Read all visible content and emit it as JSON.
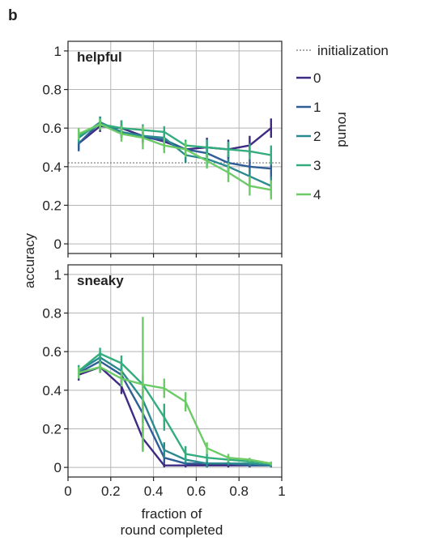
{
  "panel_label": "b",
  "colors": {
    "round_0": "#3f2a83",
    "round_1": "#2f5e96",
    "round_2": "#2a8a8f",
    "round_3": "#33ad7d",
    "round_4": "#6ccb67",
    "initialization": "#777777",
    "grid": "#b5b5b5"
  },
  "legend": {
    "initialization": "initialization",
    "title": "round",
    "entries": [
      "0",
      "1",
      "2",
      "3",
      "4"
    ]
  },
  "axes": {
    "ylabel": "accuracy",
    "xlabel_line1": "fraction of",
    "xlabel_line2": "round completed"
  },
  "chart_data": [
    {
      "type": "line",
      "panel": "helpful",
      "title": "helpful",
      "xlim": [
        0,
        1
      ],
      "ylim": [
        -0.05,
        1.05
      ],
      "xticks": [
        0,
        0.2,
        0.4,
        0.6,
        0.8,
        1
      ],
      "xtick_labels": [
        "0",
        "0.2",
        "0.4",
        "0.6",
        "0.8",
        "1"
      ],
      "yticks": [
        0,
        0.2,
        0.4,
        0.6,
        0.8,
        1
      ],
      "ytick_labels": [
        "0",
        "0.2",
        "0.4",
        "0.6",
        "0.8",
        "1"
      ],
      "grid": true,
      "initialization": 0.42,
      "x": [
        0.05,
        0.15,
        0.25,
        0.35,
        0.45,
        0.55,
        0.65,
        0.75,
        0.85,
        0.95
      ],
      "series": [
        {
          "name": "0",
          "values": [
            0.52,
            0.61,
            0.6,
            0.56,
            0.53,
            0.49,
            0.5,
            0.49,
            0.51,
            0.6
          ],
          "err": [
            0.03,
            0.03,
            0.04,
            0.03,
            0.04,
            0.04,
            0.05,
            0.05,
            0.05,
            0.05
          ]
        },
        {
          "name": "1",
          "values": [
            0.52,
            0.63,
            0.58,
            0.55,
            0.54,
            0.49,
            0.47,
            0.42,
            0.4,
            0.39
          ],
          "err": [
            0.04,
            0.03,
            0.03,
            0.03,
            0.04,
            0.04,
            0.04,
            0.04,
            0.04,
            0.05
          ]
        },
        {
          "name": "2",
          "values": [
            0.55,
            0.63,
            0.58,
            0.56,
            0.55,
            0.46,
            0.44,
            0.4,
            0.35,
            0.3
          ],
          "err": [
            0.03,
            0.03,
            0.03,
            0.03,
            0.03,
            0.04,
            0.04,
            0.04,
            0.04,
            0.05
          ]
        },
        {
          "name": "3",
          "values": [
            0.56,
            0.62,
            0.6,
            0.59,
            0.58,
            0.51,
            0.5,
            0.49,
            0.48,
            0.46
          ],
          "err": [
            0.03,
            0.03,
            0.04,
            0.03,
            0.03,
            0.03,
            0.04,
            0.04,
            0.04,
            0.05
          ]
        },
        {
          "name": "4",
          "values": [
            0.57,
            0.62,
            0.57,
            0.55,
            0.51,
            0.49,
            0.43,
            0.37,
            0.3,
            0.28
          ],
          "err": [
            0.03,
            0.03,
            0.04,
            0.06,
            0.04,
            0.04,
            0.04,
            0.05,
            0.05,
            0.05
          ]
        }
      ]
    },
    {
      "type": "line",
      "panel": "sneaky",
      "title": "sneaky",
      "xlim": [
        0,
        1
      ],
      "ylim": [
        -0.05,
        1.05
      ],
      "xticks": [
        0,
        0.2,
        0.4,
        0.6,
        0.8,
        1
      ],
      "xtick_labels": [
        "0",
        "0.2",
        "0.4",
        "0.6",
        "0.8",
        "1"
      ],
      "yticks": [
        0,
        0.2,
        0.4,
        0.6,
        0.8,
        1
      ],
      "ytick_labels": [
        "0",
        "0.2",
        "0.4",
        "0.6",
        "0.8",
        "1"
      ],
      "grid": true,
      "x": [
        0.05,
        0.15,
        0.25,
        0.35,
        0.45,
        0.55,
        0.65,
        0.75,
        0.85,
        0.95
      ],
      "series": [
        {
          "name": "0",
          "values": [
            0.48,
            0.52,
            0.42,
            0.15,
            0.01,
            0.01,
            0.01,
            0.01,
            0.01,
            0.01
          ],
          "err": [
            0.03,
            0.03,
            0.04,
            0.06,
            0.01,
            0.01,
            0.01,
            0.01,
            0.01,
            0.01
          ]
        },
        {
          "name": "1",
          "values": [
            0.49,
            0.55,
            0.48,
            0.28,
            0.05,
            0.02,
            0.02,
            0.02,
            0.01,
            0.01
          ],
          "err": [
            0.03,
            0.03,
            0.04,
            0.05,
            0.03,
            0.01,
            0.01,
            0.01,
            0.01,
            0.01
          ]
        },
        {
          "name": "2",
          "values": [
            0.5,
            0.57,
            0.5,
            0.35,
            0.09,
            0.04,
            0.02,
            0.02,
            0.02,
            0.01
          ],
          "err": [
            0.03,
            0.03,
            0.04,
            0.05,
            0.04,
            0.02,
            0.02,
            0.01,
            0.01,
            0.01
          ]
        },
        {
          "name": "3",
          "values": [
            0.5,
            0.59,
            0.54,
            0.43,
            0.26,
            0.07,
            0.05,
            0.04,
            0.03,
            0.02
          ],
          "err": [
            0.03,
            0.03,
            0.04,
            0.05,
            0.07,
            0.04,
            0.02,
            0.02,
            0.01,
            0.01
          ]
        },
        {
          "name": "4",
          "values": [
            0.49,
            0.52,
            0.46,
            0.43,
            0.41,
            0.34,
            0.1,
            0.05,
            0.04,
            0.02
          ],
          "err": [
            0.03,
            0.03,
            0.04,
            0.35,
            0.05,
            0.05,
            0.03,
            0.02,
            0.01,
            0.01
          ]
        }
      ]
    }
  ]
}
